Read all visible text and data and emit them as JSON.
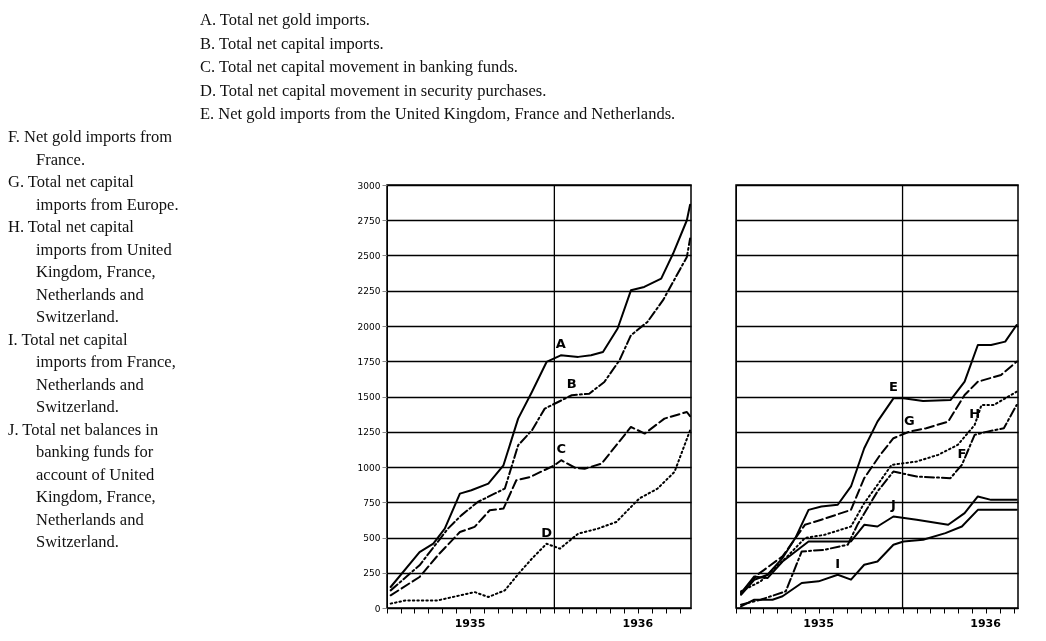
{
  "chart_data": [
    {
      "type": "line",
      "annotations": [
        "A. Total net gold imports.",
        "B. Total net capital imports.",
        "C. Total net capital movement in banking funds.",
        "D. Total net capital movement in security purchases.",
        "E. Net gold imports from the United Kingdom, France and Netherlands.",
        "F. Net gold imports from France.",
        "G. Total net capital imports from Europe.",
        "H. Total net capital imports from United Kingdom, France, Netherlands and Switzerland.",
        "I. Total net capital imports from France, Netherlands and Switzerland.",
        "J. Total net balances in banking funds for account of United Kingdom, France, Netherlands and Switzerland."
      ],
      "xlim": [
        "1935-01-01",
        "1936-10-25"
      ],
      "xticks": [
        {
          "value": "1935-01",
          "label": null
        },
        {
          "value": "1935-02",
          "label": null
        },
        {
          "value": "1935-03",
          "label": null
        },
        {
          "value": "1935-04",
          "label": null
        },
        {
          "value": "1935-05",
          "label": null
        },
        {
          "value": "1935-06",
          "label": null
        },
        {
          "value": "1935-07",
          "label": "1935"
        },
        {
          "value": "1935-08",
          "label": null
        },
        {
          "value": "1935-09",
          "label": null
        },
        {
          "value": "1935-10",
          "label": null
        },
        {
          "value": "1935-11",
          "label": null
        },
        {
          "value": "1935-12",
          "label": null
        },
        {
          "value": "1936-01",
          "label": null
        },
        {
          "value": "1936-02",
          "label": null
        },
        {
          "value": "1936-03",
          "label": null
        },
        {
          "value": "1936-04",
          "label": null
        },
        {
          "value": "1936-05",
          "label": null
        },
        {
          "value": "1936-06",
          "label": null
        },
        {
          "value": "1936-07",
          "label": "1936"
        },
        {
          "value": "1936-08",
          "label": null
        },
        {
          "value": "1936-09",
          "label": null
        },
        {
          "value": "1936-10",
          "label": null
        }
      ],
      "ylim": [
        0,
        3000
      ],
      "yticks": [
        0,
        250,
        500,
        750,
        1000,
        1250,
        1500,
        1750,
        2000,
        2250,
        2500,
        2750,
        3000
      ],
      "grid": "y",
      "ref_lines": [
        {
          "axis": "x",
          "value": "1936-01",
          "label": null
        }
      ],
      "series": [
        {
          "name": "A",
          "color": "#000000",
          "line_style": "solid",
          "x": [
            "1935-01-09",
            "1935-03-13",
            "1935-04-12",
            "1935-05-07",
            "1935-06-09",
            "1935-07-04",
            "1935-08-10",
            "1935-09-12",
            "1935-10-14",
            "1935-11-13",
            "1935-12-15",
            "1936-01-15",
            "1936-02-22",
            "1936-03-21",
            "1936-04-16",
            "1936-05-18",
            "1936-06-16",
            "1936-07-15",
            "1936-08-21",
            "1936-09-16",
            "1936-10-16",
            "1936-10-23"
          ],
          "values": [
            149,
            397,
            456,
            563,
            811,
            835,
            882,
            1012,
            1343,
            1532,
            1745,
            1792,
            1781,
            1792,
            1816,
            1982,
            2253,
            2277,
            2336,
            2514,
            2750,
            2860
          ]
        },
        {
          "name": "B",
          "color": "#000000",
          "line_style": "dashdot",
          "x": [
            "1935-01-09",
            "1935-03-13",
            "1935-05-14",
            "1935-06-12",
            "1935-07-18",
            "1935-09-15",
            "1935-10-14",
            "1935-11-13",
            "1935-12-11",
            "1936-02-08",
            "1936-03-17",
            "1936-04-19",
            "1936-05-22",
            "1936-06-16",
            "1936-07-22",
            "1936-08-25",
            "1936-10-16",
            "1936-10-23"
          ],
          "values": [
            125,
            303,
            563,
            657,
            752,
            847,
            1154,
            1260,
            1414,
            1509,
            1520,
            1603,
            1757,
            1934,
            2029,
            2183,
            2490,
            2620
          ]
        },
        {
          "name": "C",
          "color": "#000000",
          "line_style": "dashed",
          "x": [
            "1935-01-09",
            "1935-03-13",
            "1935-04-22",
            "1935-06-09",
            "1935-07-11",
            "1935-08-13",
            "1935-09-12",
            "1935-10-10",
            "1935-11-09",
            "1936-01-01",
            "1936-01-16",
            "1936-02-16",
            "1936-03-07",
            "1936-04-13",
            "1936-05-18",
            "1936-06-16",
            "1936-07-16",
            "1936-08-28",
            "1936-10-16",
            "1936-10-23"
          ],
          "values": [
            90,
            220,
            374,
            539,
            575,
            693,
            705,
            906,
            929,
            1012,
            1048,
            993,
            988,
            1024,
            1166,
            1284,
            1237,
            1343,
            1390,
            1360
          ]
        },
        {
          "name": "D",
          "color": "#000000",
          "line_style": "dotted",
          "x": [
            "1935-01-09",
            "1935-02-11",
            "1935-04-22",
            "1935-07-11",
            "1935-08-10",
            "1935-09-15",
            "1935-10-18",
            "1935-11-13",
            "1935-12-15",
            "1936-01-13",
            "1936-02-22",
            "1936-04-05",
            "1936-05-15",
            "1936-07-04",
            "1936-08-13",
            "1936-09-19",
            "1936-10-23"
          ],
          "values": [
            31,
            54,
            54,
            113,
            78,
            125,
            255,
            350,
            456,
            421,
            527,
            563,
            610,
            776,
            847,
            965,
            1260
          ]
        }
      ]
    },
    {
      "type": "line",
      "tick_labels": "x",
      "xlim": [
        "1935-01-01",
        "1936-09-10"
      ],
      "xticks": [
        {
          "value": "1935-01",
          "label": null
        },
        {
          "value": "1935-02",
          "label": null
        },
        {
          "value": "1935-03",
          "label": null
        },
        {
          "value": "1935-04",
          "label": null
        },
        {
          "value": "1935-05",
          "label": null
        },
        {
          "value": "1935-06",
          "label": null
        },
        {
          "value": "1935-07",
          "label": "1935"
        },
        {
          "value": "1935-08",
          "label": null
        },
        {
          "value": "1935-09",
          "label": null
        },
        {
          "value": "1935-10",
          "label": null
        },
        {
          "value": "1935-11",
          "label": null
        },
        {
          "value": "1935-12",
          "label": null
        },
        {
          "value": "1936-01",
          "label": null
        },
        {
          "value": "1936-02",
          "label": null
        },
        {
          "value": "1936-03",
          "label": null
        },
        {
          "value": "1936-04",
          "label": null
        },
        {
          "value": "1936-05",
          "label": null
        },
        {
          "value": "1936-06",
          "label": null
        },
        {
          "value": "1936-07",
          "label": "1936"
        },
        {
          "value": "1936-08",
          "label": null
        },
        {
          "value": "1936-09",
          "label": null
        }
      ],
      "ylim": [
        0,
        3000
      ],
      "yticks": [
        0,
        250,
        500,
        750,
        1000,
        1250,
        1500,
        1750,
        2000,
        2250,
        2500,
        2750,
        3000
      ],
      "grid": "y",
      "ref_lines": [
        {
          "axis": "x",
          "value": "1936-01",
          "label": null
        }
      ],
      "series": [
        {
          "name": "E",
          "color": "#000000",
          "line_style": "solid",
          "x": [
            "1935-01-12",
            "1935-02-10",
            "1935-03-11",
            "1935-04-13",
            "1935-05-11",
            "1935-06-09",
            "1935-07-07",
            "1935-08-12",
            "1935-09-10",
            "1935-10-09",
            "1935-11-07",
            "1935-12-12",
            "1936-01-03",
            "1936-02-15",
            "1936-04-15",
            "1936-05-16",
            "1936-06-14",
            "1936-07-13",
            "1936-08-13",
            "1936-09-07"
          ],
          "values": [
            94,
            200,
            236,
            354,
            496,
            696,
            720,
            732,
            862,
            1133,
            1322,
            1487,
            1487,
            1468,
            1475,
            1605,
            1865,
            1865,
            1889,
            2007
          ]
        },
        {
          "name": "G",
          "color": "#000000",
          "line_style": "dashed",
          "x": [
            "1935-01-12",
            "1935-02-17",
            "1935-04-13",
            "1935-06-01",
            "1935-07-07",
            "1935-09-10",
            "1935-10-09",
            "1935-11-13",
            "1935-12-12",
            "1936-01-16",
            "1936-02-22",
            "1936-04-10",
            "1936-05-16",
            "1936-06-14",
            "1936-08-04",
            "1936-09-07"
          ],
          "values": [
            106,
            236,
            366,
            590,
            626,
            696,
            921,
            1086,
            1204,
            1251,
            1275,
            1322,
            1511,
            1605,
            1653,
            1747
          ]
        },
        {
          "name": "H",
          "color": "#000000",
          "line_style": "dotted",
          "x": [
            "1935-01-12",
            "1935-02-24",
            "1935-04-20",
            "1935-06-01",
            "1935-07-14",
            "1935-09-10",
            "1935-10-09",
            "1935-11-07",
            "1935-12-08",
            "1936-02-01",
            "1936-03-19",
            "1936-05-01",
            "1936-06-07",
            "1936-06-22",
            "1936-07-19",
            "1936-09-07"
          ],
          "values": [
            118,
            189,
            354,
            496,
            519,
            578,
            744,
            873,
            1015,
            1039,
            1086,
            1157,
            1298,
            1440,
            1440,
            1534
          ]
        },
        {
          "name": "F",
          "color": "#000000",
          "line_style": "dashdot",
          "x": [
            "1935-01-12",
            "1935-02-24",
            "1935-04-20",
            "1935-05-25",
            "1935-07-14",
            "1935-09-03",
            "1935-09-24",
            "1935-11-07",
            "1935-12-12",
            "1936-02-01",
            "1936-04-15",
            "1936-05-10",
            "1936-06-07",
            "1936-07-05",
            "1936-08-10",
            "1936-09-07"
          ],
          "values": [
            24,
            59,
            118,
            401,
            413,
            449,
            590,
            826,
            968,
            932,
            921,
            1015,
            1228,
            1251,
            1275,
            1440
          ]
        },
        {
          "name": "J",
          "color": "#000000",
          "line_style": "solid",
          "x": [
            "1935-01-12",
            "1935-02-10",
            "1935-03-11",
            "1935-04-13",
            "1935-06-09",
            "1935-07-21",
            "1935-09-10",
            "1935-10-09",
            "1935-11-07",
            "1935-12-12",
            "1936-02-01",
            "1936-04-10",
            "1936-05-16",
            "1936-06-14",
            "1936-07-13",
            "1936-09-07"
          ],
          "values": [
            106,
            224,
            212,
            330,
            472,
            472,
            472,
            590,
            578,
            649,
            626,
            590,
            673,
            791,
            767,
            767
          ]
        },
        {
          "name": "I",
          "color": "#000000",
          "line_style": "solid",
          "x": [
            "1935-01-12",
            "1935-02-10",
            "1935-03-22",
            "1935-04-13",
            "1935-05-25",
            "1935-07-01",
            "1935-08-12",
            "1935-09-10",
            "1935-10-09",
            "1935-11-07",
            "1935-12-12",
            "1936-01-03",
            "1936-02-15",
            "1936-04-04",
            "1936-05-10",
            "1936-06-14",
            "1936-09-07"
          ],
          "values": [
            12,
            59,
            59,
            83,
            177,
            189,
            236,
            201,
            307,
            330,
            449,
            472,
            484,
            531,
            578,
            696,
            696
          ]
        }
      ]
    }
  ]
}
